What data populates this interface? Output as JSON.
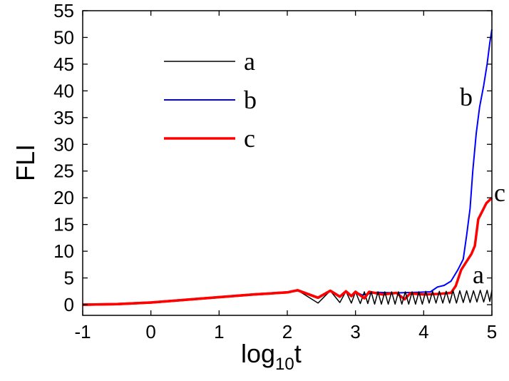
{
  "chart_data": {
    "type": "line",
    "title": "",
    "xlabel": "log",
    "xlabel_sub": "10",
    "xlabel_tail": "t",
    "ylabel": "FLI",
    "xlim": [
      -1,
      5
    ],
    "ylim": [
      -2,
      55
    ],
    "xticks": [
      -1,
      0,
      1,
      2,
      3,
      4,
      5
    ],
    "yticks": [
      0,
      5,
      10,
      15,
      20,
      25,
      30,
      35,
      40,
      45,
      50,
      55
    ],
    "grid": false,
    "legend_placement": "top-left",
    "series": [
      {
        "name": "a",
        "color": "#000000",
        "points": [
          [
            -1,
            0
          ],
          [
            -0.5,
            0.1
          ],
          [
            0,
            0.4
          ],
          [
            0.5,
            0.9
          ],
          [
            1,
            1.4
          ],
          [
            1.5,
            1.9
          ],
          [
            2,
            2.3
          ],
          [
            2.15,
            2.7
          ],
          [
            2.45,
            0.3
          ],
          [
            2.63,
            2.6
          ],
          [
            2.77,
            0.4
          ],
          [
            2.86,
            2.5
          ],
          [
            2.94,
            0.3
          ],
          [
            3.0,
            2.4
          ],
          [
            3.07,
            0.2
          ],
          [
            3.13,
            2.4
          ],
          [
            3.18,
            0.2
          ],
          [
            3.23,
            2.4
          ],
          [
            3.28,
            0.1
          ],
          [
            3.33,
            2.4
          ],
          [
            3.38,
            0.1
          ],
          [
            3.43,
            2.4
          ],
          [
            3.48,
            0.1
          ],
          [
            3.53,
            2.4
          ],
          [
            3.58,
            0.1
          ],
          [
            3.63,
            2.4
          ],
          [
            3.68,
            0.1
          ],
          [
            3.73,
            2.4
          ],
          [
            3.78,
            0.1
          ],
          [
            3.83,
            2.4
          ],
          [
            3.88,
            0.1
          ],
          [
            3.93,
            2.4
          ],
          [
            3.98,
            0.1
          ],
          [
            4.03,
            2.5
          ],
          [
            4.08,
            0.3
          ],
          [
            4.13,
            2.5
          ],
          [
            4.18,
            0.3
          ],
          [
            4.23,
            2.5
          ],
          [
            4.28,
            0.3
          ],
          [
            4.33,
            2.5
          ],
          [
            4.38,
            0.3
          ],
          [
            4.43,
            2.6
          ],
          [
            4.48,
            0.3
          ],
          [
            4.53,
            2.6
          ],
          [
            4.58,
            0.4
          ],
          [
            4.63,
            2.6
          ],
          [
            4.68,
            0.4
          ],
          [
            4.73,
            2.6
          ],
          [
            4.78,
            0.5
          ],
          [
            4.83,
            2.7
          ],
          [
            4.88,
            0.5
          ],
          [
            4.93,
            2.7
          ],
          [
            4.97,
            0.6
          ],
          [
            5,
            2.7
          ]
        ]
      },
      {
        "name": "b",
        "color": "#0000ff",
        "points": [
          [
            -1,
            0
          ],
          [
            -0.5,
            0.1
          ],
          [
            0,
            0.4
          ],
          [
            0.5,
            0.9
          ],
          [
            1,
            1.4
          ],
          [
            1.5,
            1.9
          ],
          [
            2,
            2.3
          ],
          [
            2.15,
            2.7
          ],
          [
            2.45,
            1.3
          ],
          [
            2.63,
            2.6
          ],
          [
            2.77,
            1.5
          ],
          [
            2.86,
            2.5
          ],
          [
            2.94,
            1.6
          ],
          [
            3.0,
            2.4
          ],
          [
            3.1,
            1.8
          ],
          [
            3.3,
            2.3
          ],
          [
            3.6,
            2.2
          ],
          [
            3.9,
            2.3
          ],
          [
            4.1,
            2.4
          ],
          [
            4.2,
            3.3
          ],
          [
            4.3,
            3.6
          ],
          [
            4.4,
            4.4
          ],
          [
            4.5,
            6.5
          ],
          [
            4.58,
            8.5
          ],
          [
            4.63,
            13
          ],
          [
            4.68,
            18
          ],
          [
            4.72,
            25
          ],
          [
            4.77,
            32
          ],
          [
            4.82,
            37
          ],
          [
            4.88,
            41
          ],
          [
            4.93,
            45
          ],
          [
            4.97,
            49
          ],
          [
            5,
            51.5
          ]
        ]
      },
      {
        "name": "c",
        "color": "#ff0000",
        "points": [
          [
            -1,
            0
          ],
          [
            -0.5,
            0.1
          ],
          [
            0,
            0.4
          ],
          [
            0.5,
            0.9
          ],
          [
            1,
            1.4
          ],
          [
            1.5,
            1.9
          ],
          [
            2,
            2.3
          ],
          [
            2.15,
            2.7
          ],
          [
            2.45,
            1.3
          ],
          [
            2.63,
            2.6
          ],
          [
            2.77,
            1.5
          ],
          [
            2.86,
            2.5
          ],
          [
            2.94,
            1.6
          ],
          [
            3.0,
            2.4
          ],
          [
            3.13,
            1.2
          ],
          [
            3.2,
            2.4
          ],
          [
            3.4,
            1.9
          ],
          [
            3.6,
            2.2
          ],
          [
            3.72,
            1.0
          ],
          [
            3.8,
            2.1
          ],
          [
            4.0,
            1.9
          ],
          [
            4.2,
            2.0
          ],
          [
            4.4,
            2.2
          ],
          [
            4.47,
            3.5
          ],
          [
            4.55,
            6.5
          ],
          [
            4.6,
            7.5
          ],
          [
            4.7,
            9.5
          ],
          [
            4.75,
            11
          ],
          [
            4.8,
            16
          ],
          [
            4.86,
            17.5
          ],
          [
            4.92,
            19
          ],
          [
            5,
            20
          ]
        ]
      }
    ],
    "annotations": [
      {
        "text": "b",
        "series": "b"
      },
      {
        "text": "c",
        "series": "c"
      },
      {
        "text": "a",
        "series": "a"
      }
    ]
  }
}
